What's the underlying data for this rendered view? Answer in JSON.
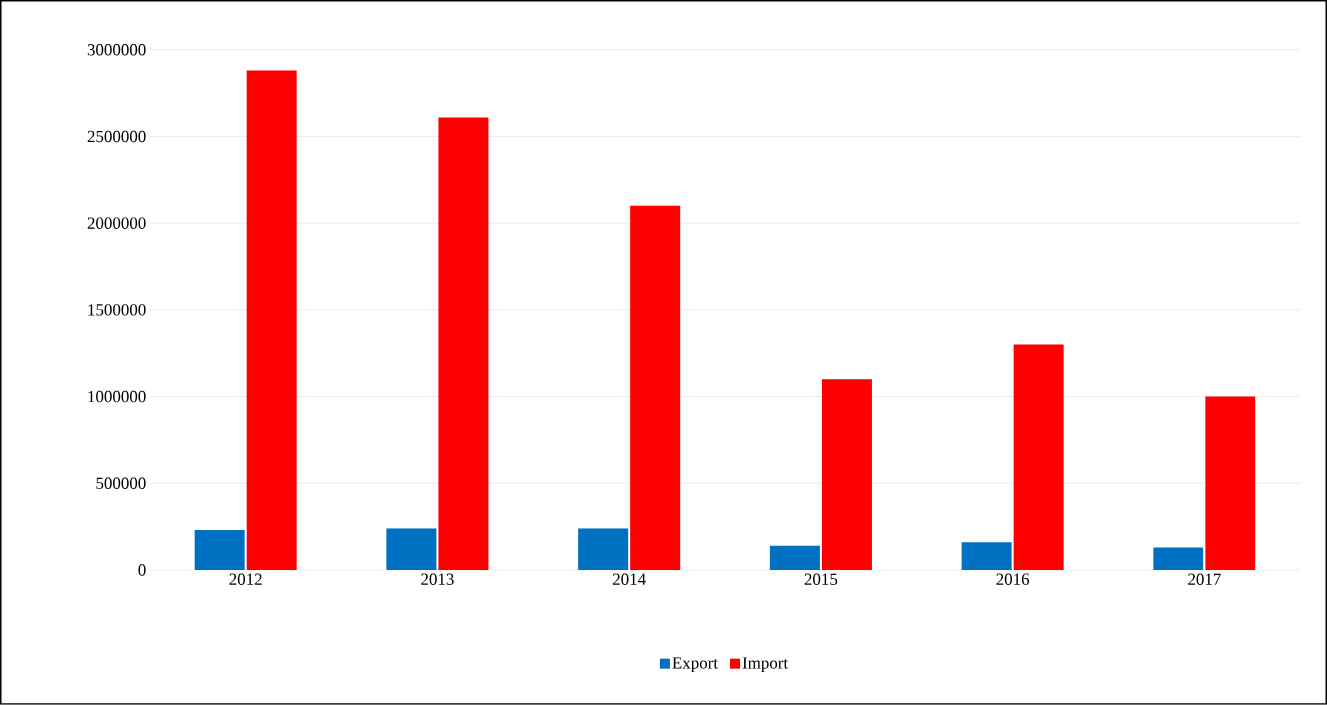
{
  "chart_data": {
    "type": "bar",
    "categories": [
      "2012",
      "2013",
      "2014",
      "2015",
      "2016",
      "2017"
    ],
    "series": [
      {
        "name": "Export",
        "color": "#0070c0",
        "values": [
          230000,
          240000,
          240000,
          140000,
          160000,
          130000
        ]
      },
      {
        "name": "Import",
        "color": "#ff0000",
        "values": [
          2880000,
          2610000,
          2100000,
          1100000,
          1300000,
          1000000
        ]
      }
    ],
    "ylim": [
      0,
      3000000
    ],
    "yticks": [
      0,
      500000,
      1000000,
      1500000,
      2000000,
      2500000,
      3000000
    ],
    "grid": "y",
    "legend": "bottom"
  }
}
